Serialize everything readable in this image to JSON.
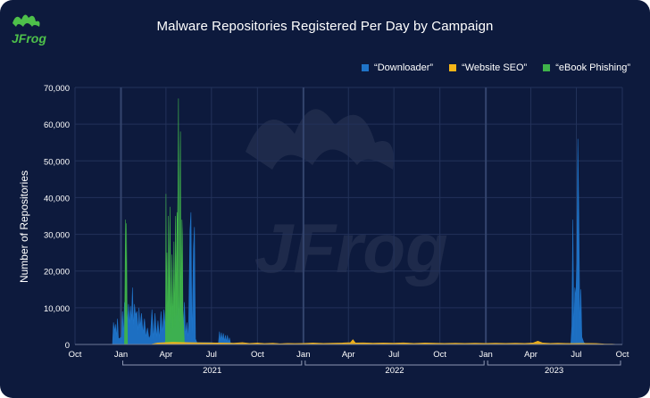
{
  "chart_data": {
    "type": "area",
    "title": "Malware Repositories Registered Per Day by Campaign",
    "ylabel": "Number of Repositories",
    "xlabel": "",
    "ylim": [
      0,
      70000
    ],
    "yticks": [
      0,
      10000,
      20000,
      30000,
      40000,
      50000,
      60000,
      70000
    ],
    "ytick_labels": [
      "0",
      "10,000",
      "20,000",
      "30,000",
      "40,000",
      "50,000",
      "60,000",
      "70,000"
    ],
    "xlim": [
      "2020-10-01",
      "2023-10-01"
    ],
    "xticks": [
      "2020-10-01",
      "2021-01-01",
      "2021-04-01",
      "2021-07-01",
      "2021-10-01",
      "2022-01-01",
      "2022-04-01",
      "2022-07-01",
      "2022-10-01",
      "2023-01-01",
      "2023-04-01",
      "2023-07-01",
      "2023-10-01"
    ],
    "xtick_labels": [
      "Oct",
      "Jan",
      "Apr",
      "Jul",
      "Oct",
      "Jan",
      "Apr",
      "Jul",
      "Oct",
      "Jan",
      "Apr",
      "Jul",
      "Oct"
    ],
    "year_labels": [
      "2021",
      "2022",
      "2023"
    ],
    "legend_position": "top-right",
    "grid": true,
    "series": [
      {
        "name": "“Downloader”",
        "color": "#1f74c9",
        "points": [
          [
            "2020-12-15",
            0
          ],
          [
            "2020-12-17",
            6000
          ],
          [
            "2020-12-19",
            3500
          ],
          [
            "2020-12-21",
            5500
          ],
          [
            "2020-12-23",
            2000
          ],
          [
            "2020-12-25",
            7000
          ],
          [
            "2020-12-27",
            1500
          ],
          [
            "2021-01-02",
            2000
          ],
          [
            "2021-01-04",
            9000
          ],
          [
            "2021-01-06",
            2500
          ],
          [
            "2021-01-08",
            11500
          ],
          [
            "2021-01-10",
            7000
          ],
          [
            "2021-01-12",
            10500
          ],
          [
            "2021-01-14",
            6000
          ],
          [
            "2021-01-16",
            11000
          ],
          [
            "2021-01-18",
            5000
          ],
          [
            "2021-01-20",
            10500
          ],
          [
            "2021-01-22",
            6500
          ],
          [
            "2021-01-24",
            15500
          ],
          [
            "2021-01-26",
            4500
          ],
          [
            "2021-01-28",
            11000
          ],
          [
            "2021-01-30",
            8000
          ],
          [
            "2021-02-02",
            9000
          ],
          [
            "2021-02-04",
            3000
          ],
          [
            "2021-02-06",
            10000
          ],
          [
            "2021-02-08",
            4500
          ],
          [
            "2021-02-11",
            8500
          ],
          [
            "2021-02-14",
            3000
          ],
          [
            "2021-02-17",
            7000
          ],
          [
            "2021-02-20",
            2000
          ],
          [
            "2021-02-23",
            4500
          ],
          [
            "2021-02-26",
            1500
          ],
          [
            "2021-03-01",
            2500
          ],
          [
            "2021-03-04",
            9500
          ],
          [
            "2021-03-07",
            1500
          ],
          [
            "2021-03-10",
            8500
          ],
          [
            "2021-03-13",
            2000
          ],
          [
            "2021-03-16",
            6500
          ],
          [
            "2021-03-19",
            1500
          ],
          [
            "2021-03-22",
            9000
          ],
          [
            "2021-03-25",
            3000
          ],
          [
            "2021-03-28",
            9500
          ],
          [
            "2021-03-31",
            4000
          ],
          [
            "2021-04-02",
            11000
          ],
          [
            "2021-04-04",
            4500
          ],
          [
            "2021-04-06",
            12000
          ],
          [
            "2021-04-08",
            5000
          ],
          [
            "2021-04-10",
            13000
          ],
          [
            "2021-04-12",
            4000
          ],
          [
            "2021-04-14",
            11000
          ],
          [
            "2021-04-16",
            3500
          ],
          [
            "2021-04-18",
            13500
          ],
          [
            "2021-04-20",
            5000
          ],
          [
            "2021-04-22",
            12000
          ],
          [
            "2021-04-24",
            5500
          ],
          [
            "2021-04-26",
            13000
          ],
          [
            "2021-04-28",
            4000
          ],
          [
            "2021-04-30",
            12000
          ],
          [
            "2021-05-02",
            5500
          ],
          [
            "2021-05-04",
            12500
          ],
          [
            "2021-05-06",
            4000
          ],
          [
            "2021-05-08",
            11500
          ],
          [
            "2021-05-10",
            2500
          ],
          [
            "2021-05-13",
            6000
          ],
          [
            "2021-05-16",
            1500
          ],
          [
            "2021-05-19",
            31000
          ],
          [
            "2021-05-21",
            36000
          ],
          [
            "2021-05-23",
            1000
          ],
          [
            "2021-05-26",
            26000
          ],
          [
            "2021-05-28",
            32000
          ],
          [
            "2021-05-30",
            1500
          ],
          [
            "2021-06-02",
            500
          ],
          [
            "2021-06-30",
            500
          ],
          [
            "2021-07-15",
            300
          ],
          [
            "2021-07-17",
            3500
          ],
          [
            "2021-07-19",
            1000
          ],
          [
            "2021-07-21",
            3200
          ],
          [
            "2021-07-23",
            1200
          ],
          [
            "2021-07-25",
            3000
          ],
          [
            "2021-07-27",
            800
          ],
          [
            "2021-07-29",
            2500
          ],
          [
            "2021-07-31",
            700
          ],
          [
            "2021-08-02",
            2500
          ],
          [
            "2021-08-04",
            500
          ],
          [
            "2021-08-06",
            1800
          ],
          [
            "2021-08-08",
            400
          ],
          [
            "2021-08-12",
            300
          ],
          [
            "2021-08-20",
            0
          ],
          [
            "2023-06-20",
            0
          ],
          [
            "2023-06-22",
            5000
          ],
          [
            "2023-06-24",
            34000
          ],
          [
            "2023-06-26",
            2500
          ],
          [
            "2023-06-28",
            15500
          ],
          [
            "2023-06-30",
            13000
          ],
          [
            "2023-07-02",
            22000
          ],
          [
            "2023-07-04",
            56000
          ],
          [
            "2023-07-06",
            35000
          ],
          [
            "2023-07-08",
            4500
          ],
          [
            "2023-07-10",
            15000
          ],
          [
            "2023-07-12",
            2000
          ],
          [
            "2023-07-16",
            500
          ],
          [
            "2023-07-22",
            0
          ]
        ]
      },
      {
        "name": "“Website SEO”",
        "color": "#f5b518",
        "points": [
          [
            "2021-03-01",
            0
          ],
          [
            "2021-03-15",
            400
          ],
          [
            "2021-04-15",
            600
          ],
          [
            "2021-05-15",
            500
          ],
          [
            "2021-06-15",
            450
          ],
          [
            "2021-07-15",
            400
          ],
          [
            "2021-08-15",
            350
          ],
          [
            "2021-09-01",
            500
          ],
          [
            "2021-09-15",
            300
          ],
          [
            "2021-10-01",
            400
          ],
          [
            "2021-10-15",
            250
          ],
          [
            "2021-11-01",
            350
          ],
          [
            "2021-11-15",
            200
          ],
          [
            "2021-12-01",
            300
          ],
          [
            "2021-12-15",
            250
          ],
          [
            "2022-01-01",
            300
          ],
          [
            "2022-01-20",
            400
          ],
          [
            "2022-02-10",
            300
          ],
          [
            "2022-03-01",
            350
          ],
          [
            "2022-03-20",
            400
          ],
          [
            "2022-04-05",
            500
          ],
          [
            "2022-04-10",
            1300
          ],
          [
            "2022-04-15",
            400
          ],
          [
            "2022-05-01",
            450
          ],
          [
            "2022-05-20",
            350
          ],
          [
            "2022-06-10",
            400
          ],
          [
            "2022-07-01",
            350
          ],
          [
            "2022-07-20",
            450
          ],
          [
            "2022-08-10",
            300
          ],
          [
            "2022-09-01",
            400
          ],
          [
            "2022-09-20",
            350
          ],
          [
            "2022-10-10",
            300
          ],
          [
            "2022-11-01",
            350
          ],
          [
            "2022-11-20",
            300
          ],
          [
            "2022-12-10",
            350
          ],
          [
            "2023-01-01",
            300
          ],
          [
            "2023-01-20",
            350
          ],
          [
            "2023-02-10",
            300
          ],
          [
            "2023-03-01",
            350
          ],
          [
            "2023-03-20",
            300
          ],
          [
            "2023-04-05",
            400
          ],
          [
            "2023-04-15",
            900
          ],
          [
            "2023-04-25",
            400
          ],
          [
            "2023-05-10",
            300
          ],
          [
            "2023-05-25",
            350
          ],
          [
            "2023-06-10",
            300
          ],
          [
            "2023-06-25",
            250
          ],
          [
            "2023-07-10",
            300
          ],
          [
            "2023-07-25",
            300
          ],
          [
            "2023-08-10",
            250
          ],
          [
            "2023-08-25",
            150
          ],
          [
            "2023-09-10",
            100
          ],
          [
            "2023-09-25",
            0
          ]
        ]
      },
      {
        "name": "“eBook Phishing”",
        "color": "#3fb34a",
        "points": [
          [
            "2021-01-08",
            0
          ],
          [
            "2021-01-09",
            15000
          ],
          [
            "2021-01-10",
            34000
          ],
          [
            "2021-01-11",
            9000
          ],
          [
            "2021-01-12",
            33000
          ],
          [
            "2021-01-13",
            12000
          ],
          [
            "2021-01-14",
            0
          ],
          [
            "2021-03-31",
            0
          ],
          [
            "2021-04-01",
            41000
          ],
          [
            "2021-04-02",
            9000
          ],
          [
            "2021-04-03",
            25000
          ],
          [
            "2021-04-05",
            2000
          ],
          [
            "2021-04-06",
            35000
          ],
          [
            "2021-04-08",
            7000
          ],
          [
            "2021-04-09",
            37500
          ],
          [
            "2021-04-11",
            3000
          ],
          [
            "2021-04-13",
            24500
          ],
          [
            "2021-04-15",
            4500
          ],
          [
            "2021-04-17",
            28000
          ],
          [
            "2021-04-19",
            5000
          ],
          [
            "2021-04-20",
            35000
          ],
          [
            "2021-04-21",
            24000
          ],
          [
            "2021-04-22",
            8000
          ],
          [
            "2021-04-23",
            36000
          ],
          [
            "2021-04-24",
            29500
          ],
          [
            "2021-04-25",
            42000
          ],
          [
            "2021-04-26",
            67000
          ],
          [
            "2021-04-27",
            10000
          ],
          [
            "2021-04-28",
            4500
          ],
          [
            "2021-04-29",
            45000
          ],
          [
            "2021-04-30",
            58000
          ],
          [
            "2021-05-01",
            7000
          ],
          [
            "2021-05-03",
            34000
          ],
          [
            "2021-05-04",
            29000
          ],
          [
            "2021-05-05",
            9000
          ],
          [
            "2021-05-06",
            6000
          ],
          [
            "2021-05-08",
            0
          ]
        ]
      }
    ]
  }
}
